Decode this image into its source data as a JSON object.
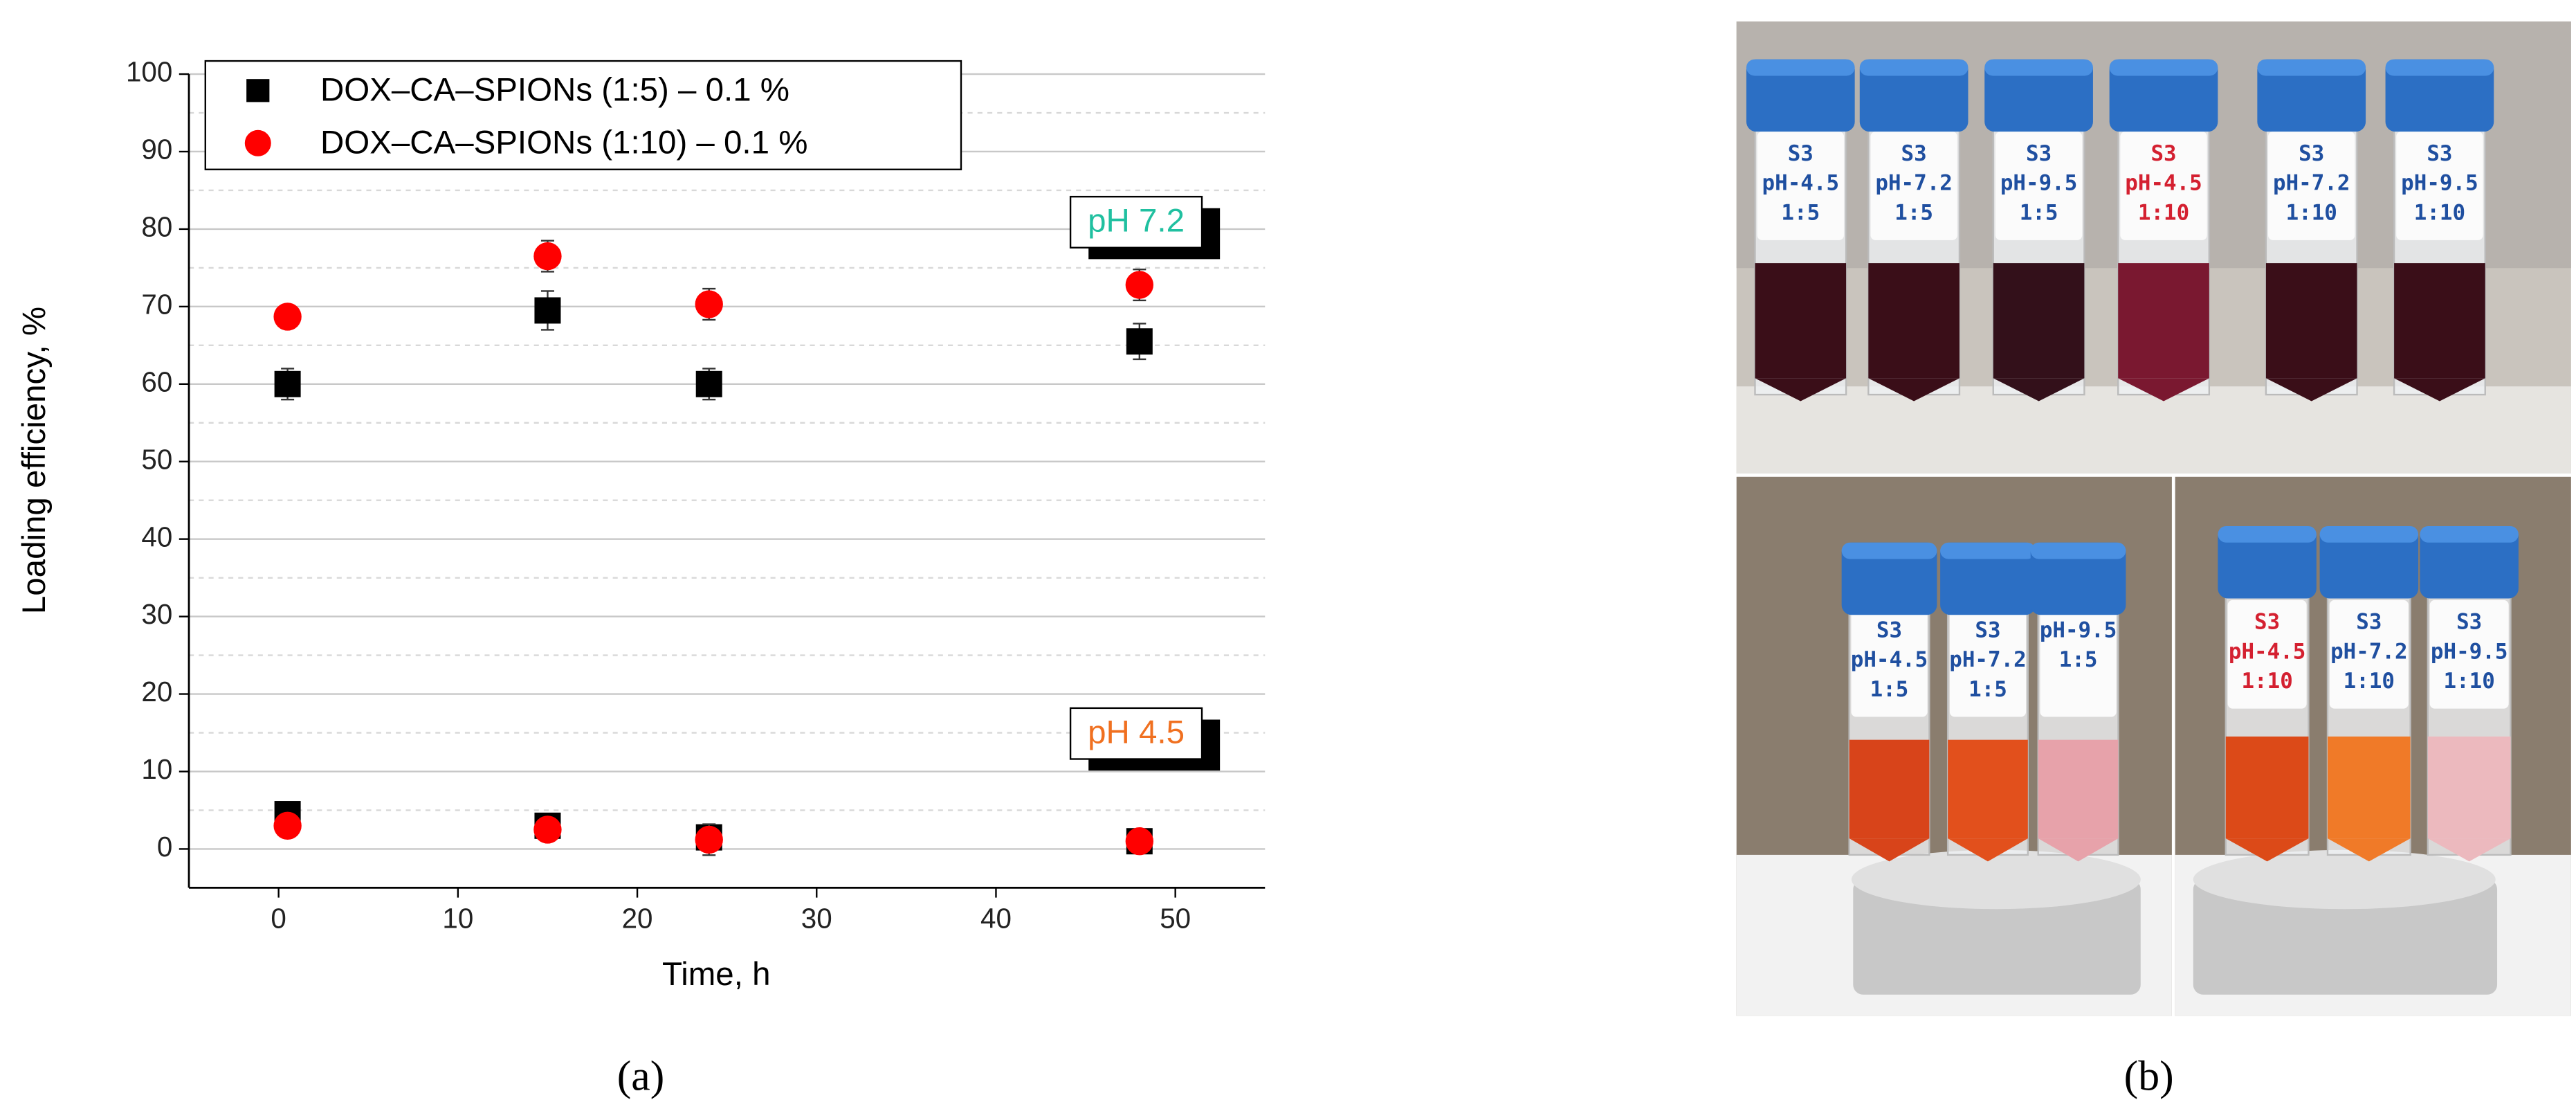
{
  "chart_data": {
    "type": "scatter",
    "xlabel": "Time, h",
    "ylabel": "Loading efficiency, %",
    "xlim": [
      -5,
      55
    ],
    "xticks": [
      0,
      10,
      20,
      30,
      40,
      50
    ],
    "ylim": [
      -5,
      100
    ],
    "yticks": [
      0,
      10,
      20,
      30,
      40,
      50,
      60,
      70,
      80,
      90,
      100
    ],
    "yminor": [
      5,
      15,
      25,
      35,
      45,
      55,
      65,
      75,
      85,
      95
    ],
    "grid": "y",
    "legend": "upper left",
    "series": [
      {
        "name": "DOX–CA–SPIONs (1:5) – 0.1 %",
        "color": "#000000",
        "marker": "square",
        "x": [
          0.5,
          15,
          24,
          48,
          0.5,
          15,
          24,
          48
        ],
        "values": [
          60,
          69.5,
          60,
          65.5,
          4.5,
          3,
          1.5,
          1
        ],
        "errors": [
          2,
          2.5,
          2,
          2.3,
          1,
          1,
          1,
          1
        ]
      },
      {
        "name": "DOX–CA–SPIONs (1:10) – 0.1 %",
        "color": "#ff0000",
        "marker": "circle",
        "x": [
          0.5,
          15,
          24,
          48,
          0.5,
          15,
          24,
          48
        ],
        "values": [
          68.7,
          76.5,
          70.3,
          72.8,
          3,
          2.5,
          1.2,
          1
        ],
        "errors": [
          1.5,
          2,
          2,
          2,
          1,
          1,
          2,
          1
        ]
      }
    ],
    "annotations": [
      {
        "text": "pH 7.2",
        "color": "#20c0a0",
        "x": 48,
        "y": 81
      },
      {
        "text": "pH 4.5",
        "color": "#f07020",
        "x": 48,
        "y": 15
      }
    ]
  },
  "panel_labels": [
    "(a)",
    "(b)"
  ],
  "photo": {
    "top": [
      [
        "S3",
        "pH-4.5",
        "1:5"
      ],
      [
        "S3",
        "pH-7.2",
        "1:5"
      ],
      [
        "S3",
        "pH-9.5",
        "1:5"
      ],
      [
        "S3",
        "pH-4.5",
        "1:10"
      ],
      [
        "S3",
        "pH-7.2",
        "1:10"
      ],
      [
        "S3",
        "pH-9.5",
        "1:10"
      ]
    ],
    "bottom_left": [
      [
        "S3",
        "pH-4.5",
        "1:5"
      ],
      [
        "S3",
        "pH-7.2",
        "1:5"
      ],
      [
        "pH-9.5",
        "1:5"
      ]
    ],
    "bottom_right": [
      [
        "S3",
        "pH-4.5",
        "1:10"
      ],
      [
        "S3",
        "pH-7.2",
        "1:10"
      ],
      [
        "S3",
        "pH-9.5",
        "1:10"
      ]
    ]
  }
}
